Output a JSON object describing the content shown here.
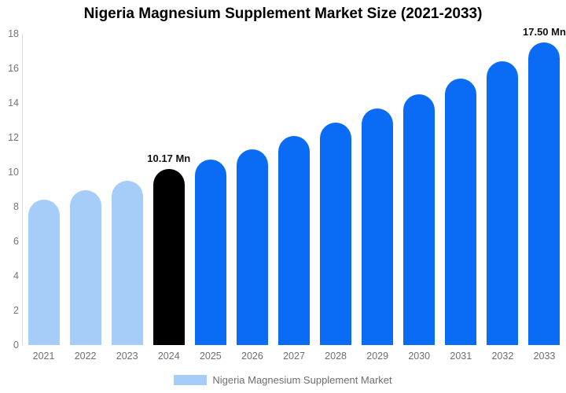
{
  "title": "Nigeria Magnesium Supplement Market Size (2021-2033)",
  "legend": {
    "label": "Nigeria Magnesium Supplement Market",
    "swatch_color": "#a6cdf7"
  },
  "colors": {
    "past_bar": "#a6cdf7",
    "highlight_bar": "#000000",
    "forecast_bar": "#0a6bf5",
    "axis_line": "#d9d9d9",
    "y_tick_text": "#757575",
    "x_tick_text": "#6e6e6e",
    "title_text": "#000000",
    "annotation_text": "#111111"
  },
  "chart_data": {
    "type": "bar",
    "title": "Nigeria Magnesium Supplement Market Size (2021-2033)",
    "unit": "Mn",
    "categories": [
      "2021",
      "2022",
      "2023",
      "2024",
      "2025",
      "2026",
      "2027",
      "2028",
      "2029",
      "2030",
      "2031",
      "2032",
      "2033"
    ],
    "values": [
      8.4,
      8.95,
      9.5,
      10.17,
      10.72,
      11.33,
      12.08,
      12.88,
      13.68,
      14.5,
      15.4,
      16.42,
      17.5
    ],
    "bar_color_keys": [
      "past",
      "past",
      "past",
      "highlight",
      "forecast",
      "forecast",
      "forecast",
      "forecast",
      "forecast",
      "forecast",
      "forecast",
      "forecast",
      "forecast"
    ],
    "annotations": [
      {
        "category": "2024",
        "text": "10.17 Mn"
      },
      {
        "category": "2033",
        "text": "17.50 Mn"
      }
    ],
    "xlabel": "",
    "ylabel": "",
    "ylim": [
      0,
      18
    ],
    "ytick_step": 2,
    "yticks": [
      0,
      2,
      4,
      6,
      8,
      10,
      12,
      14,
      16,
      18
    ],
    "grid": false,
    "legend_position": "bottom"
  }
}
